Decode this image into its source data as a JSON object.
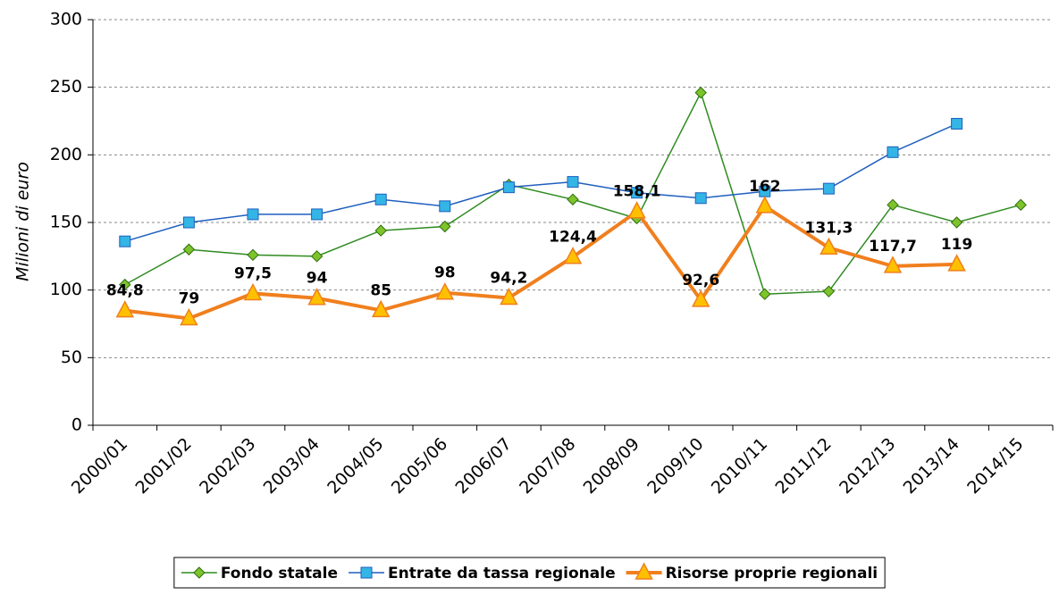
{
  "chart_data": {
    "type": "line",
    "y_label": "Milioni di euro",
    "categories": [
      "2000/01",
      "2001/02",
      "2002/03",
      "2003/04",
      "2004/05",
      "2005/06",
      "2006/07",
      "2007/08",
      "2008/09",
      "2009/10",
      "2010/11",
      "2011/12",
      "2012/13",
      "2013/14",
      "2014/15"
    ],
    "ylim": [
      0,
      300
    ],
    "yticks": [
      0,
      50,
      100,
      150,
      200,
      250,
      300
    ],
    "grid": true,
    "series": [
      {
        "name": "Fondo statale",
        "color": "#2e8b1f",
        "marker": "diamond",
        "marker_color": "#7dc42a",
        "width": 1.5,
        "values": [
          104,
          130,
          126,
          125,
          144,
          147,
          178,
          167,
          153,
          246,
          97,
          99,
          163,
          150,
          163
        ]
      },
      {
        "name": "Entrate da tassa regionale",
        "color": "#1f5fbf",
        "marker": "square",
        "marker_color": "#33b5e5",
        "width": 1.5,
        "values": [
          136,
          150,
          156,
          156,
          167,
          162,
          176,
          180,
          172,
          168,
          173,
          175,
          202,
          223,
          null
        ]
      },
      {
        "name": "Risorse proprie regionali",
        "color": "#f07f1e",
        "marker": "triangle",
        "marker_color": "#ffc000",
        "width": 4,
        "values": [
          84.8,
          79,
          97.5,
          94,
          85,
          98,
          94.2,
          124.4,
          158.1,
          92.6,
          162,
          131.3,
          117.7,
          119,
          null
        ],
        "value_labels": [
          "84,8",
          "79",
          "97,5",
          "94",
          "85",
          "98",
          "94,2",
          "124,4",
          "158,1",
          "92,6",
          "162",
          "131,3",
          "117,7",
          "119",
          null
        ]
      }
    ],
    "legend": "bottom"
  }
}
